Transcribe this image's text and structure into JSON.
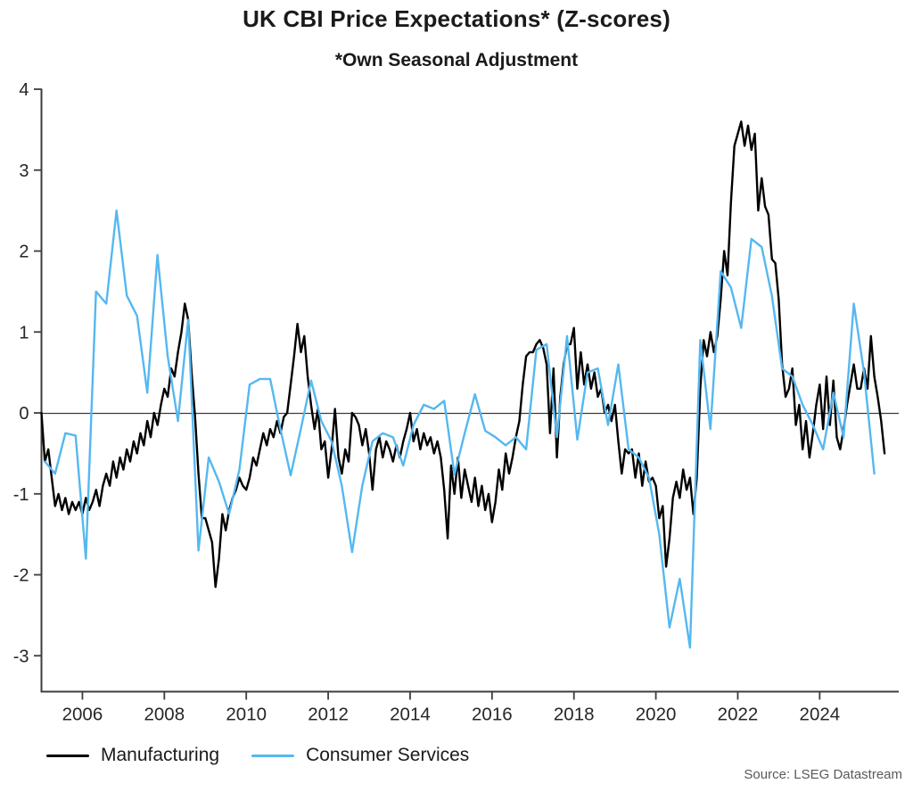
{
  "header": {
    "title": "UK CBI Price Expectations* (Z-scores)",
    "subtitle": "*Own Seasonal Adjustment"
  },
  "footer": {
    "source": "Source: LSEG Datastream"
  },
  "chart_data": {
    "type": "line",
    "title": "UK CBI Price Expectations* (Z-scores)",
    "subtitle": "*Own Seasonal Adjustment",
    "source": "Source: LSEG Datastream",
    "grid": false,
    "legend_position": "bottom-left",
    "y_axis": {
      "label": "",
      "ticks": [
        4,
        3,
        2,
        1,
        0,
        -1,
        -2,
        -3
      ],
      "range": [
        -3.45,
        4.0
      ],
      "zero_line": true
    },
    "x_axis": {
      "label": "",
      "ticks": [
        2006,
        2008,
        2010,
        2012,
        2014,
        2016,
        2018,
        2020,
        2022,
        2024
      ],
      "range": [
        2005.0,
        2025.95
      ]
    },
    "series": [
      {
        "name": "Manufacturing",
        "color": "#000000",
        "cadence": "monthly",
        "start_year": 2005,
        "values": [
          0.0,
          -0.6,
          -0.45,
          -0.8,
          -1.15,
          -1.0,
          -1.2,
          -1.05,
          -1.25,
          -1.1,
          -1.2,
          -1.1,
          -1.25,
          -1.05,
          -1.2,
          -1.1,
          -0.95,
          -1.15,
          -0.9,
          -0.75,
          -0.9,
          -0.6,
          -0.8,
          -0.55,
          -0.7,
          -0.45,
          -0.6,
          -0.35,
          -0.5,
          -0.25,
          -0.4,
          -0.1,
          -0.3,
          0.0,
          -0.15,
          0.1,
          0.3,
          0.2,
          0.55,
          0.45,
          0.75,
          1.0,
          1.35,
          1.15,
          0.5,
          -0.05,
          -0.75,
          -1.3,
          -1.3,
          -1.45,
          -1.6,
          -2.15,
          -1.8,
          -1.25,
          -1.45,
          -1.2,
          -1.05,
          -0.95,
          -0.8,
          -0.9,
          -0.95,
          -0.8,
          -0.55,
          -0.65,
          -0.45,
          -0.25,
          -0.4,
          -0.2,
          -0.3,
          -0.1,
          -0.25,
          -0.05,
          0.0,
          0.35,
          0.7,
          1.1,
          0.75,
          0.95,
          0.45,
          0.1,
          -0.2,
          0.05,
          -0.45,
          -0.35,
          -0.8,
          -0.45,
          0.05,
          -0.55,
          -0.75,
          -0.45,
          -0.6,
          0.0,
          -0.05,
          -0.15,
          -0.4,
          -0.2,
          -0.5,
          -0.95,
          -0.45,
          -0.3,
          -0.55,
          -0.35,
          -0.45,
          -0.6,
          -0.4,
          -0.55,
          -0.35,
          -0.2,
          0.0,
          -0.35,
          -0.2,
          -0.45,
          -0.25,
          -0.4,
          -0.3,
          -0.5,
          -0.35,
          -0.55,
          -0.95,
          -1.55,
          -0.65,
          -1.0,
          -0.55,
          -1.05,
          -0.7,
          -0.9,
          -1.1,
          -0.8,
          -1.15,
          -0.9,
          -1.2,
          -1.0,
          -1.35,
          -1.1,
          -0.7,
          -0.95,
          -0.5,
          -0.75,
          -0.55,
          -0.3,
          -0.1,
          0.35,
          0.7,
          0.75,
          0.75,
          0.85,
          0.9,
          0.8,
          0.6,
          -0.25,
          0.55,
          -0.55,
          0.2,
          0.6,
          0.85,
          0.85,
          1.05,
          0.3,
          0.75,
          0.35,
          0.6,
          0.3,
          0.5,
          0.2,
          0.3,
          0.0,
          0.1,
          -0.1,
          0.1,
          -0.35,
          -0.75,
          -0.45,
          -0.5,
          -0.45,
          -0.8,
          -0.5,
          -0.9,
          -0.6,
          -0.85,
          -0.8,
          -0.9,
          -1.3,
          -1.15,
          -1.9,
          -1.55,
          -1.05,
          -0.85,
          -1.05,
          -0.7,
          -0.95,
          -0.8,
          -1.25,
          -0.8,
          0.3,
          0.9,
          0.7,
          1.0,
          0.75,
          0.95,
          1.4,
          2.0,
          1.7,
          2.6,
          3.3,
          3.45,
          3.6,
          3.3,
          3.55,
          3.25,
          3.45,
          2.5,
          2.9,
          2.55,
          2.45,
          1.9,
          1.85,
          1.4,
          0.6,
          0.2,
          0.3,
          0.55,
          -0.15,
          0.1,
          -0.45,
          -0.1,
          -0.55,
          -0.25,
          0.1,
          0.35,
          -0.2,
          0.45,
          -0.15,
          0.4,
          -0.3,
          -0.45,
          -0.2,
          0.1,
          0.35,
          0.6,
          0.3,
          0.3,
          0.55,
          0.3,
          0.95,
          0.45,
          0.2,
          -0.1,
          -0.5
        ]
      },
      {
        "name": "Consumer Services",
        "color": "#55B8F0",
        "cadence": "quarterly",
        "start_year": 2005,
        "quarter_offsets": [
          0.083,
          0.333,
          0.583,
          0.833
        ],
        "values": [
          -0.6,
          -0.75,
          -0.25,
          -0.28,
          -1.8,
          1.5,
          1.35,
          2.5,
          1.45,
          1.2,
          0.25,
          1.95,
          0.7,
          -0.1,
          1.15,
          -1.7,
          -0.55,
          -0.85,
          -1.25,
          -0.7,
          0.35,
          0.42,
          0.42,
          -0.2,
          -0.77,
          -0.2,
          0.4,
          -0.1,
          -0.35,
          -0.9,
          -1.72,
          -0.9,
          -0.35,
          -0.25,
          -0.3,
          -0.65,
          -0.15,
          0.1,
          0.05,
          0.15,
          -0.76,
          -0.25,
          0.23,
          -0.22,
          -0.3,
          -0.4,
          -0.3,
          -0.45,
          0.78,
          0.85,
          -0.3,
          0.95,
          -0.33,
          0.5,
          0.55,
          -0.15,
          0.6,
          -0.45,
          -0.55,
          -0.8,
          -1.5,
          -2.65,
          -2.05,
          -2.9,
          0.9,
          -0.2,
          1.75,
          1.55,
          1.05,
          2.15,
          2.05,
          1.45,
          0.55,
          0.45,
          0.1,
          -0.15,
          -0.45,
          0.25,
          -0.3,
          1.35,
          0.5,
          -0.75
        ]
      }
    ]
  }
}
